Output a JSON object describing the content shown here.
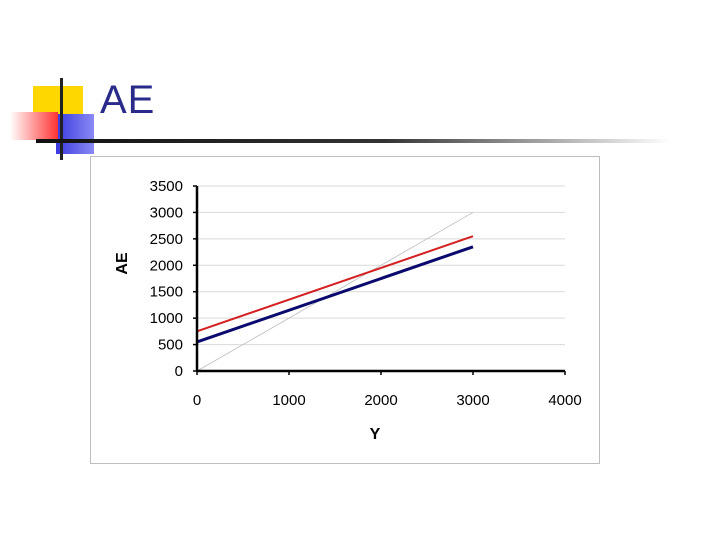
{
  "slide": {
    "title": "AE",
    "decor_colors": {
      "yellow": "#ffd700",
      "blue": "#3a3adf",
      "red": "#ff3333",
      "rule": "#222222"
    }
  },
  "chart_data": {
    "type": "line",
    "title": "",
    "xlabel": "Y",
    "ylabel": "AE",
    "xlim": [
      0,
      4000
    ],
    "ylim": [
      0,
      3500
    ],
    "xticks": [
      0,
      1000,
      2000,
      3000,
      4000
    ],
    "yticks": [
      0,
      500,
      1000,
      1500,
      2000,
      2500,
      3000,
      3500
    ],
    "grid": true,
    "legend": "none",
    "series": [
      {
        "color": "#bdbdbd",
        "style": "thin",
        "x": [
          0,
          3000
        ],
        "y": [
          0,
          3000
        ]
      },
      {
        "color": "#d42020",
        "style": "medium",
        "x": [
          0,
          3000
        ],
        "y": [
          750,
          2550
        ]
      },
      {
        "color": "#0a0a6e",
        "style": "thick",
        "x": [
          0,
          3000
        ],
        "y": [
          550,
          2350
        ]
      }
    ]
  }
}
